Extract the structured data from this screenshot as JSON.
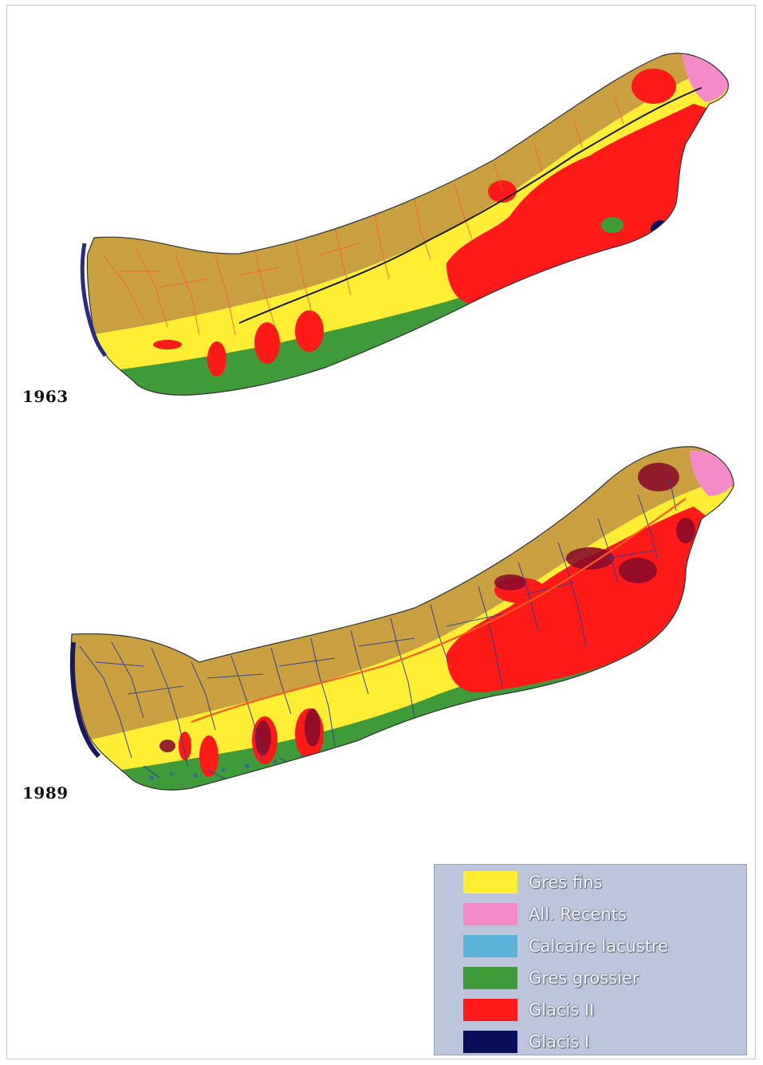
{
  "maps": [
    {
      "year": "1963"
    },
    {
      "year": "1989"
    }
  ],
  "legend": {
    "items": [
      {
        "label": "Gres fins",
        "color": "#ffee33"
      },
      {
        "label": "All. Recents",
        "color": "#f58ac8"
      },
      {
        "label": "Calcaire lacustre",
        "color": "#5ab4d8"
      },
      {
        "label": "Gres grossier",
        "color": "#3f9a3a"
      },
      {
        "label": "Glacis II",
        "color": "#ff1a1a"
      },
      {
        "label": "Glacis I",
        "color": "#0b0f5a"
      }
    ]
  },
  "colors": {
    "upland": "#c9a040",
    "drainage_1963": "#ff5a3c",
    "drainage_1989": "#2e3f9a",
    "dark_red_1989": "#8a0d2a"
  }
}
